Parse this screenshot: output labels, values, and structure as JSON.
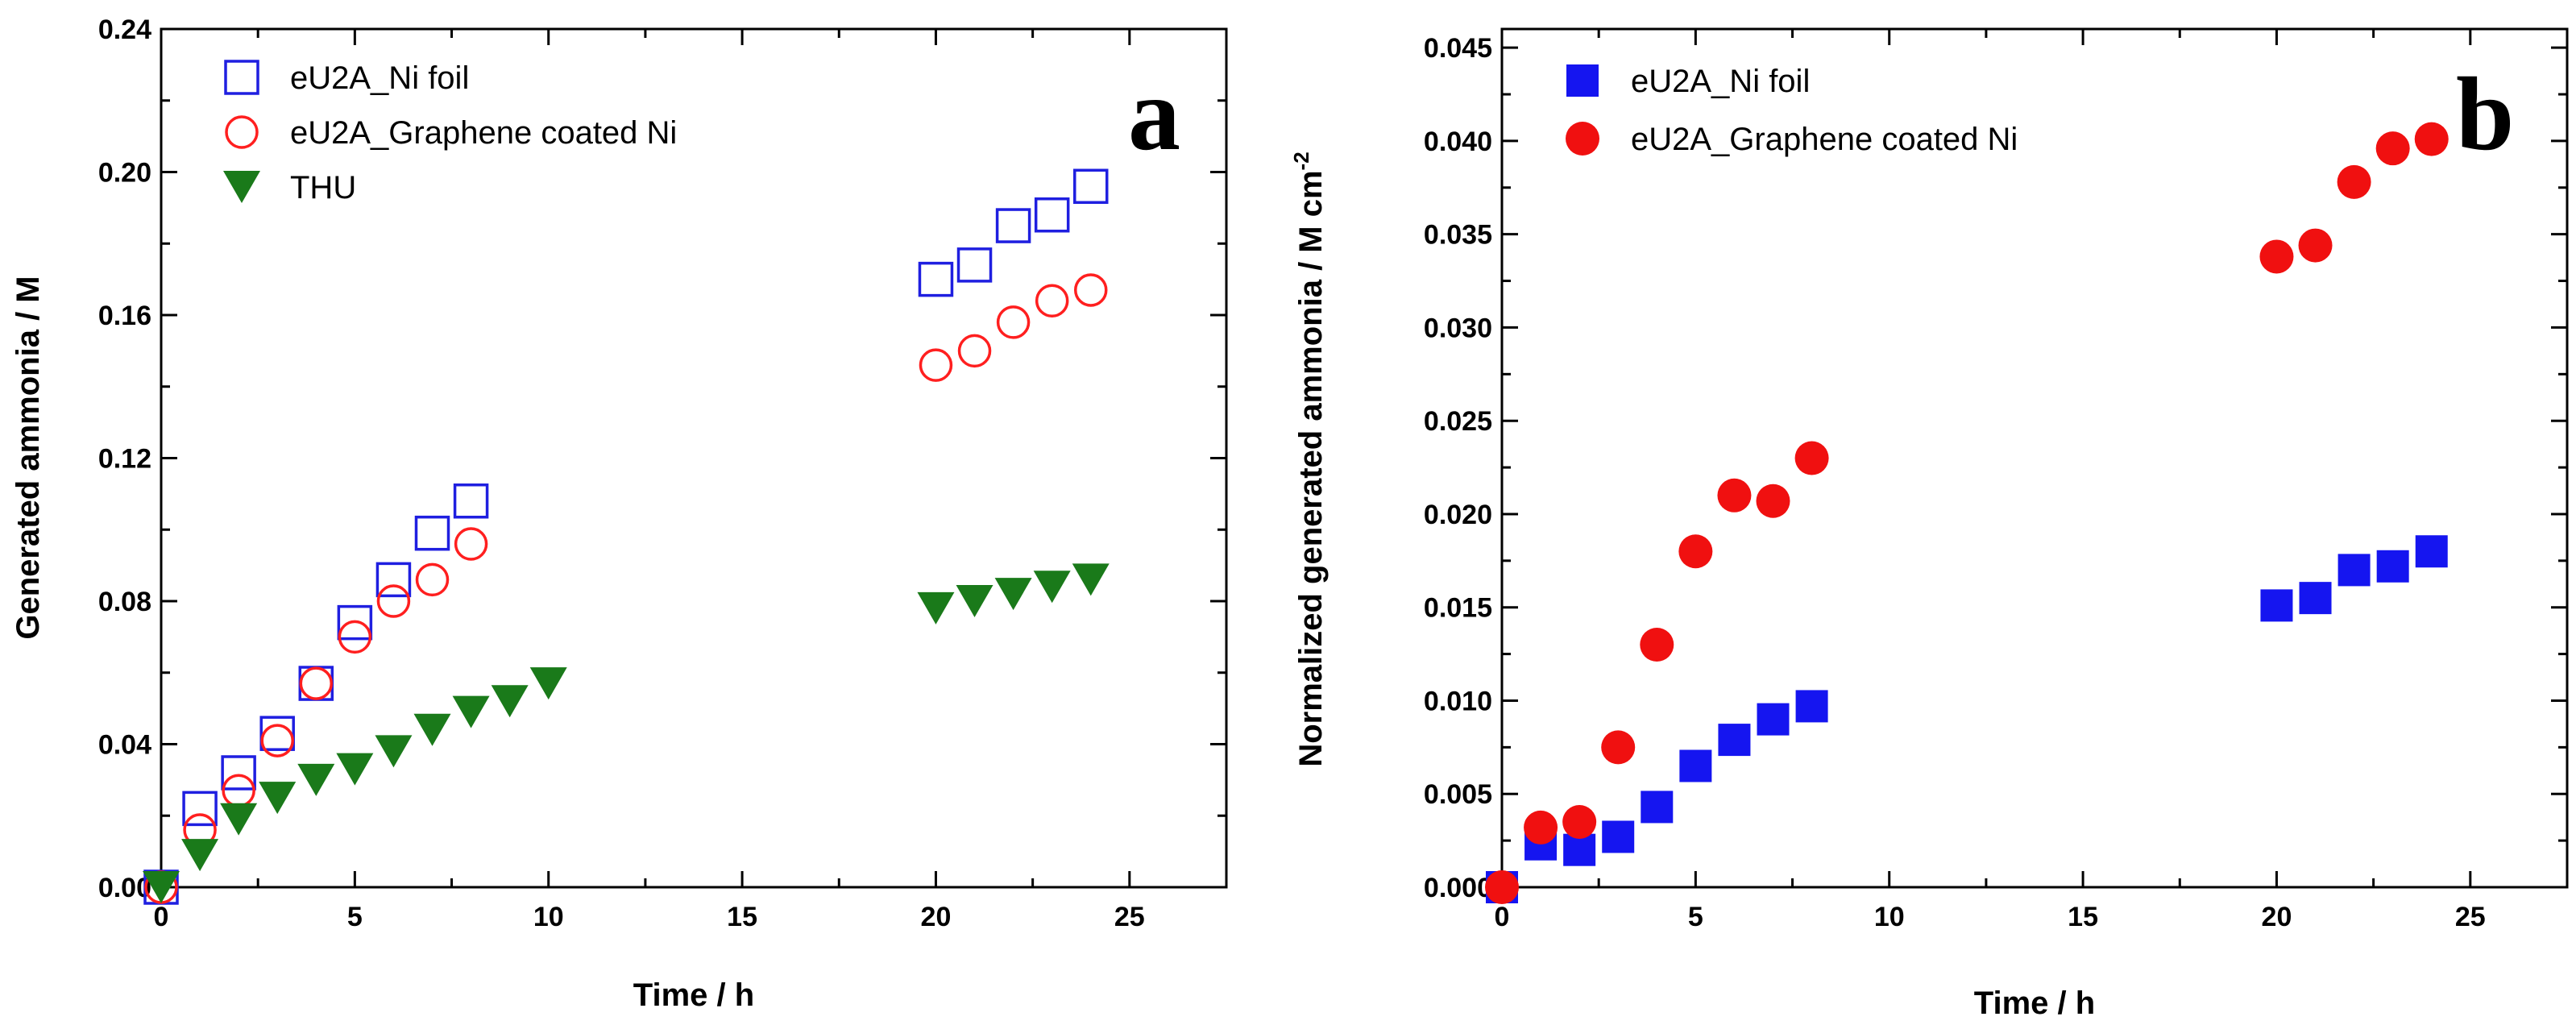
{
  "chart_data": [
    {
      "type": "scatter",
      "panel_label": "a",
      "xlabel": "Time / h",
      "ylabel": "Generated ammonia / M",
      "xlim": [
        0,
        27.5
      ],
      "ylim": [
        0,
        0.24
      ],
      "xticks": [
        "0",
        "5",
        "10",
        "15",
        "20",
        "25"
      ],
      "yticks": [
        "0.00",
        "0.04",
        "0.08",
        "0.12",
        "0.16",
        "0.20",
        "0.24"
      ],
      "legend_position": "top-left",
      "series": [
        {
          "name": "eU2A_Ni foil",
          "marker": "open-square",
          "color": "#1f1fe0",
          "x": [
            0,
            1,
            2,
            3,
            4,
            5,
            6,
            7,
            8,
            20,
            21,
            22,
            23,
            24
          ],
          "y": [
            0.0,
            0.022,
            0.032,
            0.043,
            0.057,
            0.074,
            0.086,
            0.099,
            0.108,
            0.17,
            0.174,
            0.185,
            0.188,
            0.196
          ]
        },
        {
          "name": "eU2A_Graphene coated Ni",
          "marker": "open-circle",
          "color": "#ff1f1f",
          "x": [
            0,
            1,
            2,
            3,
            4,
            5,
            6,
            7,
            8,
            20,
            21,
            22,
            23,
            24
          ],
          "y": [
            0.0,
            0.016,
            0.027,
            0.041,
            0.057,
            0.07,
            0.08,
            0.086,
            0.096,
            0.146,
            0.15,
            0.158,
            0.164,
            0.167
          ]
        },
        {
          "name": "THU",
          "marker": "filled-triangle-down",
          "color": "#1a7a1a",
          "x": [
            0,
            1,
            2,
            3,
            4,
            5,
            6,
            7,
            8,
            9,
            10,
            20,
            21,
            22,
            23,
            24
          ],
          "y": [
            0.0,
            0.009,
            0.019,
            0.025,
            0.03,
            0.033,
            0.038,
            0.044,
            0.049,
            0.052,
            0.057,
            0.078,
            0.08,
            0.082,
            0.084,
            0.086
          ]
        }
      ]
    },
    {
      "type": "scatter",
      "panel_label": "b",
      "xlabel": "Time / h",
      "ylabel": "Normalized generated ammonia / M cm",
      "ylabel_sup": "-2",
      "xlim": [
        0,
        27.5
      ],
      "ylim": [
        0,
        0.046
      ],
      "xticks": [
        "0",
        "5",
        "10",
        "15",
        "20",
        "25"
      ],
      "yticks": [
        "0.000",
        "0.005",
        "0.010",
        "0.015",
        "0.020",
        "0.025",
        "0.030",
        "0.035",
        "0.040",
        "0.045"
      ],
      "legend_position": "top-left",
      "series": [
        {
          "name": "eU2A_Ni foil",
          "marker": "filled-square",
          "color": "#1515f0",
          "x": [
            0,
            1,
            2,
            3,
            4,
            5,
            6,
            7,
            8,
            20,
            21,
            22,
            23,
            24
          ],
          "y": [
            0.0,
            0.0023,
            0.002,
            0.0027,
            0.0043,
            0.0065,
            0.0079,
            0.009,
            0.0097,
            0.0151,
            0.0155,
            0.017,
            0.0172,
            0.018
          ]
        },
        {
          "name": "eU2A_Graphene coated Ni",
          "marker": "filled-circle",
          "color": "#f01010",
          "x": [
            0,
            1,
            2,
            3,
            4,
            5,
            6,
            7,
            8,
            20,
            21,
            22,
            23,
            24
          ],
          "y": [
            0.0,
            0.0032,
            0.0035,
            0.0075,
            0.013,
            0.018,
            0.021,
            0.0207,
            0.023,
            0.0338,
            0.0344,
            0.0378,
            0.0396,
            0.0401
          ]
        }
      ]
    }
  ]
}
